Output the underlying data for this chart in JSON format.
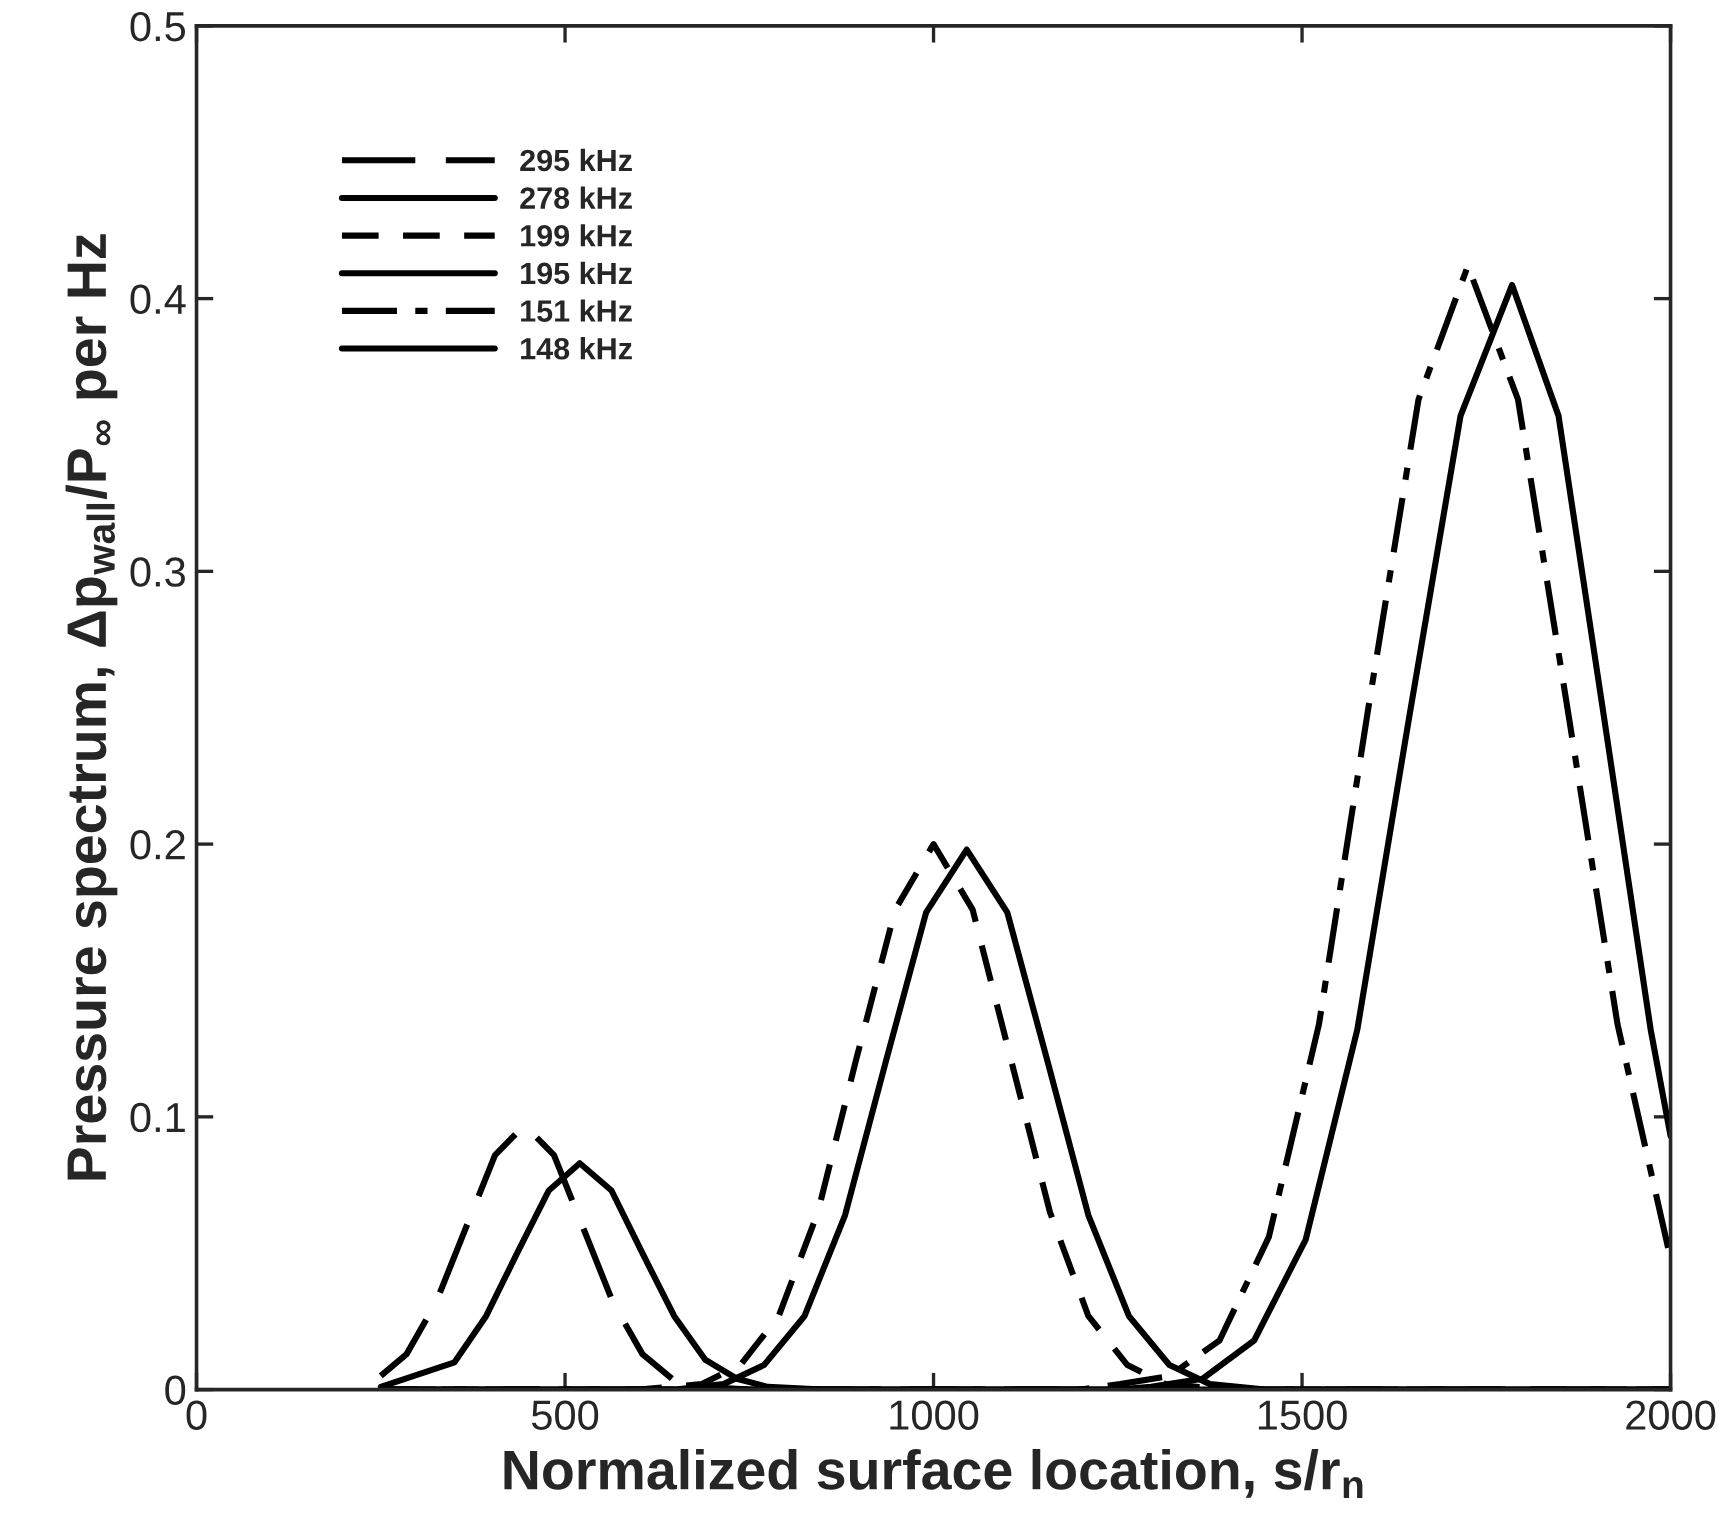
{
  "chart_data": {
    "type": "line",
    "xlabel": "Normalized surface location, s/r$_{n}$",
    "ylabel": "Pressure spectrum, Δp$_{wall}$/P$_{∞}$ per Hz",
    "xlim": [
      0,
      2000
    ],
    "xticks": [
      0,
      500,
      1000,
      1500,
      2000
    ],
    "ylim": [
      0,
      0.5
    ],
    "yticks": [
      {
        "value": 0,
        "label": "0"
      },
      0.1,
      0.2,
      0.3,
      0.4,
      0.5
    ],
    "grid": false,
    "legend": "top left",
    "marker": "none",
    "series": [
      {
        "name": "295 kHz",
        "color": "#000000",
        "line_style": "longdash",
        "x": [
          250,
          285,
          325,
          365,
          405,
          445,
          485,
          525,
          565,
          605,
          645,
          685,
          750,
          1000,
          1500,
          2000
        ],
        "values": [
          0.005,
          0.013,
          0.032,
          0.059,
          0.086,
          0.097,
          0.086,
          0.059,
          0.032,
          0.013,
          0.004,
          0.001,
          0,
          0,
          0,
          0
        ]
      },
      {
        "name": "278 kHz",
        "color": "#000000",
        "line_style": "solid",
        "x": [
          250,
          350,
          393,
          435,
          478,
          520,
          563,
          605,
          648,
          690,
          733,
          775,
          850,
          1500,
          2000
        ],
        "values": [
          0.001,
          0.01,
          0.027,
          0.05,
          0.073,
          0.083,
          0.073,
          0.05,
          0.027,
          0.011,
          0.004,
          0.001,
          0,
          0,
          0
        ]
      },
      {
        "name": "199 kHz",
        "color": "#000000",
        "line_style": "dashed",
        "x": [
          250,
          600,
          685,
          738,
          790,
          843,
          895,
          948,
          1000,
          1053,
          1105,
          1158,
          1210,
          1263,
          1315,
          1400,
          2000
        ],
        "values": [
          0,
          0,
          0.002,
          0.009,
          0.027,
          0.065,
          0.121,
          0.176,
          0.2,
          0.176,
          0.121,
          0.065,
          0.027,
          0.009,
          0.002,
          0,
          0
        ]
      },
      {
        "name": "195 kHz",
        "color": "#000000",
        "line_style": "solid",
        "x": [
          250,
          650,
          715,
          770,
          825,
          880,
          935,
          990,
          1045,
          1100,
          1155,
          1210,
          1265,
          1320,
          1375,
          1450,
          2000
        ],
        "values": [
          0,
          0,
          0.002,
          0.009,
          0.027,
          0.064,
          0.12,
          0.175,
          0.198,
          0.175,
          0.12,
          0.064,
          0.027,
          0.009,
          0.002,
          0,
          0
        ]
      },
      {
        "name": "151 kHz",
        "color": "#000000",
        "line_style": "dashdot",
        "x": [
          250,
          1200,
          1253,
          1320,
          1388,
          1455,
          1523,
          1590,
          1658,
          1725,
          1793,
          1860,
          1928,
          2000
        ],
        "values": [
          0,
          0,
          0.002,
          0.005,
          0.018,
          0.056,
          0.134,
          0.25,
          0.363,
          0.412,
          0.363,
          0.25,
          0.134,
          0.048
        ]
      },
      {
        "name": "148 kHz",
        "color": "#000000",
        "line_style": "solid",
        "x": [
          250,
          1250,
          1295,
          1365,
          1435,
          1505,
          1575,
          1645,
          1715,
          1785,
          1848,
          1910,
          1973,
          2000
        ],
        "values": [
          0,
          0,
          0.001,
          0.004,
          0.018,
          0.055,
          0.132,
          0.246,
          0.357,
          0.405,
          0.357,
          0.246,
          0.132,
          0.093
        ]
      }
    ]
  }
}
